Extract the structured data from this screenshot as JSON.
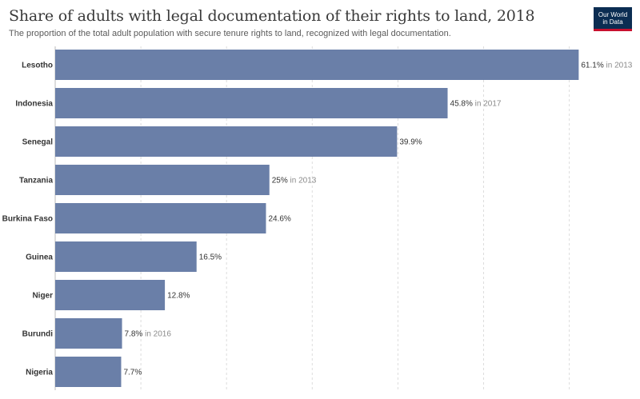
{
  "header": {
    "title": "Share of adults with legal documentation of their rights to land, 2018",
    "subtitle": "The proportion of the total adult population with secure tenure rights to land, recognized with legal documentation."
  },
  "logo": {
    "line1": "Our World",
    "line2": "in Data"
  },
  "colors": {
    "bar": "#6a7fa8",
    "grid": "#dddddd",
    "year_text": "#8a8a8a"
  },
  "chart_data": {
    "type": "bar",
    "orientation": "horizontal",
    "title": "Share of adults with legal documentation of their rights to land, 2018",
    "xlabel": "",
    "ylabel": "",
    "xlim": [
      0,
      65
    ],
    "grid": true,
    "categories": [
      "Lesotho",
      "Indonesia",
      "Senegal",
      "Tanzania",
      "Burkina Faso",
      "Guinea",
      "Niger",
      "Burundi",
      "Nigeria"
    ],
    "values": [
      61.1,
      45.8,
      39.9,
      25,
      24.6,
      16.5,
      12.8,
      7.8,
      7.7
    ],
    "value_labels": [
      "61.1%",
      "45.8%",
      "39.9%",
      "25%",
      "24.6%",
      "16.5%",
      "12.8%",
      "7.8%",
      "7.7%"
    ],
    "year_notes": [
      "in 2013",
      "in 2017",
      "",
      "in 2013",
      "",
      "",
      "",
      "in 2016",
      ""
    ]
  }
}
